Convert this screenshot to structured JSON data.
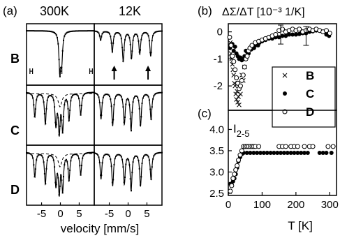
{
  "chart_data": [
    {
      "panel": "(a)",
      "type": "line",
      "column_titles": [
        "300K",
        "12K"
      ],
      "row_labels": [
        "B",
        "C",
        "D"
      ],
      "xlabel": "velocity [mm/s]",
      "xticks": [
        "-5",
        "0",
        "5",
        "-5",
        "0",
        "5"
      ],
      "xlim": [
        -9,
        9
      ],
      "arrows": {
        "row": "B",
        "column": "12K",
        "x": [
          -3.7,
          5.3
        ]
      },
      "spectra": [
        {
          "row": "B",
          "temp": "300K",
          "lines": [
            {
              "pos": -0.15,
              "depth": 0.85
            },
            {
              "pos": 0.35,
              "depth": 0.6
            }
          ],
          "split_markers": true
        },
        {
          "row": "B",
          "temp": "12K",
          "lines": [
            {
              "pos": -7.3,
              "depth": 0.2
            },
            {
              "pos": -4.2,
              "depth": 0.45
            },
            {
              "pos": -1.3,
              "depth": 0.65
            },
            {
              "pos": 0.9,
              "depth": 0.6
            },
            {
              "pos": 3.1,
              "depth": 0.5
            },
            {
              "pos": 6.0,
              "depth": 0.55
            }
          ]
        },
        {
          "row": "C",
          "temp": "300K",
          "lines": [
            {
              "pos": -6.8,
              "depth": 0.55
            },
            {
              "pos": -4.0,
              "depth": 0.7
            },
            {
              "pos": -1.2,
              "depth": 0.7
            },
            {
              "pos": -0.3,
              "depth": 0.85
            },
            {
              "pos": 0.6,
              "depth": 0.8
            },
            {
              "pos": 2.3,
              "depth": 0.6
            },
            {
              "pos": 5.4,
              "depth": 0.5
            }
          ],
          "dashed": true
        },
        {
          "row": "C",
          "temp": "12K",
          "lines": [
            {
              "pos": -7.2,
              "depth": 0.6
            },
            {
              "pos": -4.1,
              "depth": 0.75
            },
            {
              "pos": -1.0,
              "depth": 0.7
            },
            {
              "pos": 0.8,
              "depth": 0.85
            },
            {
              "pos": 3.3,
              "depth": 0.75
            },
            {
              "pos": 6.1,
              "depth": 0.6
            }
          ]
        },
        {
          "row": "D",
          "temp": "300K",
          "lines": [
            {
              "pos": -6.8,
              "depth": 0.55
            },
            {
              "pos": -4.0,
              "depth": 0.7
            },
            {
              "pos": -1.2,
              "depth": 0.7
            },
            {
              "pos": -0.3,
              "depth": 0.85
            },
            {
              "pos": 0.6,
              "depth": 0.8
            },
            {
              "pos": 2.3,
              "depth": 0.6
            },
            {
              "pos": 5.4,
              "depth": 0.5
            }
          ],
          "dashed": true
        },
        {
          "row": "D",
          "temp": "12K",
          "lines": [
            {
              "pos": -7.2,
              "depth": 0.6
            },
            {
              "pos": -4.1,
              "depth": 0.75
            },
            {
              "pos": -1.0,
              "depth": 0.7
            },
            {
              "pos": 0.8,
              "depth": 0.85
            },
            {
              "pos": 3.3,
              "depth": 0.75
            },
            {
              "pos": 6.1,
              "depth": 0.6
            }
          ]
        }
      ]
    },
    {
      "panel": "(b)",
      "type": "scatter",
      "title": "ΔΣ/ΔT [10⁻³ 1/K]",
      "xlim": [
        0,
        320
      ],
      "ylim": [
        -2.9,
        0.3
      ],
      "yticks": [
        "0",
        "-1",
        "-2"
      ],
      "legend": {
        "placement": "right",
        "entries": [
          {
            "name": "B",
            "marker": "x"
          },
          {
            "name": "C",
            "marker": "filled-circle"
          },
          {
            "name": "D",
            "marker": "open-circle"
          }
        ]
      },
      "error_bars": [
        {
          "x": 155,
          "y": -0.1,
          "err": 0.35
        },
        {
          "x": 230,
          "y": -0.15,
          "err": 0.35
        }
      ],
      "series": [
        {
          "name": "B",
          "marker": "x",
          "points": [
            [
              6,
              -0.4
            ],
            [
              8,
              -0.8
            ],
            [
              10,
              -1.0
            ],
            [
              12,
              -1.2
            ],
            [
              14,
              -1.4
            ],
            [
              16,
              -1.6
            ],
            [
              18,
              -1.9
            ],
            [
              20,
              -2.0
            ],
            [
              22,
              -2.3
            ],
            [
              24,
              -2.5
            ],
            [
              26,
              -2.2
            ],
            [
              28,
              -2.6
            ],
            [
              30,
              -2.4
            ],
            [
              32,
              -2.7
            ],
            [
              34,
              -2.0
            ],
            [
              36,
              -2.3
            ],
            [
              40,
              -1.6
            ],
            [
              44,
              -1.8
            ],
            [
              48,
              -1.3
            ]
          ]
        },
        {
          "name": "C",
          "marker": "filled-circle",
          "points": [
            [
              5,
              -0.6
            ],
            [
              8,
              -0.5
            ],
            [
              12,
              -0.45
            ],
            [
              16,
              -0.7
            ],
            [
              20,
              -0.55
            ],
            [
              24,
              -0.8
            ],
            [
              28,
              -0.9
            ],
            [
              32,
              -1.0
            ],
            [
              36,
              -0.95
            ],
            [
              40,
              -1.05
            ],
            [
              44,
              -1.0
            ],
            [
              48,
              -0.9
            ],
            [
              52,
              -0.7
            ],
            [
              56,
              -0.75
            ],
            [
              60,
              -0.8
            ],
            [
              64,
              -0.6
            ],
            [
              68,
              -0.65
            ],
            [
              72,
              -0.55
            ],
            [
              76,
              -0.6
            ],
            [
              80,
              -0.5
            ],
            [
              84,
              -0.45
            ],
            [
              88,
              -0.5
            ],
            [
              92,
              -0.4
            ],
            [
              100,
              -0.35
            ],
            [
              110,
              -0.3
            ],
            [
              120,
              -0.25
            ],
            [
              130,
              -0.25
            ],
            [
              140,
              -0.2
            ],
            [
              150,
              -0.2
            ],
            [
              160,
              -0.15
            ],
            [
              170,
              -0.15
            ],
            [
              180,
              -0.1
            ],
            [
              190,
              -0.1
            ],
            [
              200,
              -0.1
            ],
            [
              210,
              -0.08
            ],
            [
              220,
              -0.05
            ],
            [
              230,
              -0.05
            ],
            [
              240,
              0.0
            ],
            [
              250,
              0.02
            ],
            [
              260,
              0.05
            ],
            [
              270,
              0.05
            ],
            [
              280,
              0.0
            ],
            [
              290,
              -0.1
            ],
            [
              298,
              -0.15
            ]
          ]
        },
        {
          "name": "D",
          "marker": "open-circle",
          "points": [
            [
              4,
              -0.2
            ],
            [
              8,
              -0.5
            ],
            [
              12,
              -0.9
            ],
            [
              16,
              -1.1
            ],
            [
              20,
              -1.4
            ],
            [
              24,
              -1.7
            ],
            [
              28,
              -1.9
            ],
            [
              32,
              -2.1
            ],
            [
              36,
              -2.0
            ],
            [
              40,
              -1.8
            ],
            [
              44,
              -1.6
            ],
            [
              48,
              -1.3
            ],
            [
              52,
              -1.0
            ],
            [
              56,
              -0.9
            ],
            [
              60,
              -0.7
            ],
            [
              64,
              -0.6
            ],
            [
              70,
              -0.5
            ],
            [
              80,
              -0.4
            ],
            [
              90,
              -0.35
            ],
            [
              100,
              -0.3
            ],
            [
              110,
              -0.25
            ],
            [
              120,
              -0.2
            ],
            [
              130,
              -0.15
            ],
            [
              140,
              -0.1
            ],
            [
              150,
              0.05
            ],
            [
              160,
              0.1
            ],
            [
              170,
              0.0
            ],
            [
              180,
              0.05
            ],
            [
              190,
              0.1
            ],
            [
              200,
              0.05
            ],
            [
              210,
              0.1
            ],
            [
              220,
              0.0
            ],
            [
              230,
              0.05
            ],
            [
              240,
              0.1
            ],
            [
              250,
              0.05
            ],
            [
              260,
              0.1
            ],
            [
              270,
              0.05
            ],
            [
              280,
              0.0
            ],
            [
              290,
              0.05
            ],
            [
              300,
              -0.05
            ]
          ]
        }
      ]
    },
    {
      "panel": "(c)",
      "type": "scatter",
      "ylabel": "I",
      "ylabel_sub": "2-5",
      "xlabel": "T [K]",
      "xlim": [
        0,
        320
      ],
      "ylim": [
        2.45,
        4.45
      ],
      "xticks": [
        "0",
        "100",
        "200",
        "300"
      ],
      "yticks": [
        "4.0",
        "3.5",
        "3.0",
        "2.5"
      ],
      "series": [
        {
          "name": "C",
          "marker": "filled-circle",
          "points": [
            [
              6,
              2.72
            ],
            [
              10,
              2.7
            ],
            [
              14,
              2.78
            ],
            [
              18,
              2.85
            ],
            [
              22,
              2.95
            ],
            [
              26,
              3.1
            ],
            [
              30,
              3.25
            ],
            [
              35,
              3.35
            ],
            [
              40,
              3.42
            ],
            [
              45,
              3.45
            ],
            [
              55,
              3.45
            ],
            [
              65,
              3.45
            ],
            [
              75,
              3.45
            ],
            [
              85,
              3.45
            ],
            [
              95,
              3.45
            ],
            [
              105,
              3.45
            ],
            [
              115,
              3.45
            ],
            [
              125,
              3.45
            ],
            [
              135,
              3.45
            ],
            [
              145,
              3.45
            ],
            [
              155,
              3.45
            ],
            [
              165,
              3.45
            ],
            [
              175,
              3.45
            ],
            [
              185,
              3.45
            ],
            [
              195,
              3.45
            ],
            [
              205,
              3.45
            ],
            [
              215,
              3.45
            ],
            [
              225,
              3.45
            ],
            [
              235,
              3.45
            ],
            [
              270,
              3.45
            ],
            [
              280,
              3.45
            ],
            [
              290,
              3.45
            ],
            [
              305,
              3.45
            ]
          ]
        },
        {
          "name": "D",
          "marker": "open-circle",
          "points": [
            [
              6,
              2.55
            ],
            [
              10,
              2.68
            ],
            [
              14,
              2.85
            ],
            [
              18,
              2.95
            ],
            [
              22,
              3.05
            ],
            [
              26,
              3.15
            ],
            [
              30,
              3.28
            ],
            [
              35,
              3.4
            ],
            [
              40,
              3.5
            ],
            [
              45,
              3.6
            ],
            [
              50,
              3.6
            ],
            [
              55,
              3.6
            ],
            [
              60,
              3.6
            ],
            [
              65,
              3.6
            ],
            [
              70,
              3.6
            ],
            [
              75,
              3.6
            ],
            [
              80,
              3.6
            ],
            [
              90,
              3.6
            ],
            [
              150,
              3.6
            ],
            [
              160,
              3.6
            ],
            [
              170,
              3.6
            ],
            [
              185,
              3.6
            ],
            [
              195,
              3.6
            ],
            [
              205,
              3.6
            ],
            [
              225,
              3.6
            ],
            [
              240,
              3.6
            ],
            [
              250,
              3.6
            ],
            [
              295,
              3.6
            ],
            [
              310,
              3.6
            ]
          ]
        }
      ]
    }
  ]
}
